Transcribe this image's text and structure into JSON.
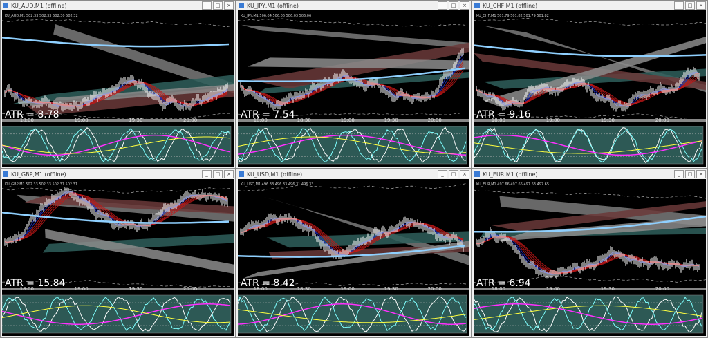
{
  "windows": [
    {
      "title": "KU_AUD,M1 (offline)",
      "info": "KU_AUD,M1 502.33 502.33 502.30 502.32",
      "atr": "ATR = 8.78",
      "times": [
        "18:00",
        "19:00",
        "19:30",
        "20:00"
      ]
    },
    {
      "title": "KU_JPY,M1 (offline)",
      "info": "KU_JPY,M1 506.04 506.06 506.03 506.06",
      "atr": "ATR = 7.54",
      "times": [
        "18:00",
        "18:30",
        "19:00",
        "19:30",
        "20:00"
      ]
    },
    {
      "title": "KU_CHF,M1 (offline)",
      "info": "KU_CHF,M1 501.79 501.82 501.79 501.82",
      "atr": "ATR = 9.16",
      "times": [
        "18:00",
        "19:00",
        "19:30",
        "20:00"
      ]
    },
    {
      "title": "KU_GBP,M1 (offline)",
      "info": "KU_GBP,M1 502.33 502.33 502.31 502.31",
      "atr": "ATR = 15.84",
      "times": [
        "18:00",
        "19:00",
        "19:30",
        "20:00"
      ]
    },
    {
      "title": "KU_USD,M1 (offline)",
      "info": "KU_USD,M1 496.33 496.33 496.31 496.33",
      "atr": "ATR = 8.42",
      "times": [
        "18:00",
        "18:30",
        "19:00",
        "19:30",
        "20:00"
      ]
    },
    {
      "title": "KU_EUR,M1 (offline)",
      "info": "KU_EUR,M1 497.66 497.66 497.63 497.65",
      "atr": "ATR = 6.94",
      "times": [
        "18:00",
        "19:00",
        "19:30",
        "20:00"
      ]
    }
  ]
}
